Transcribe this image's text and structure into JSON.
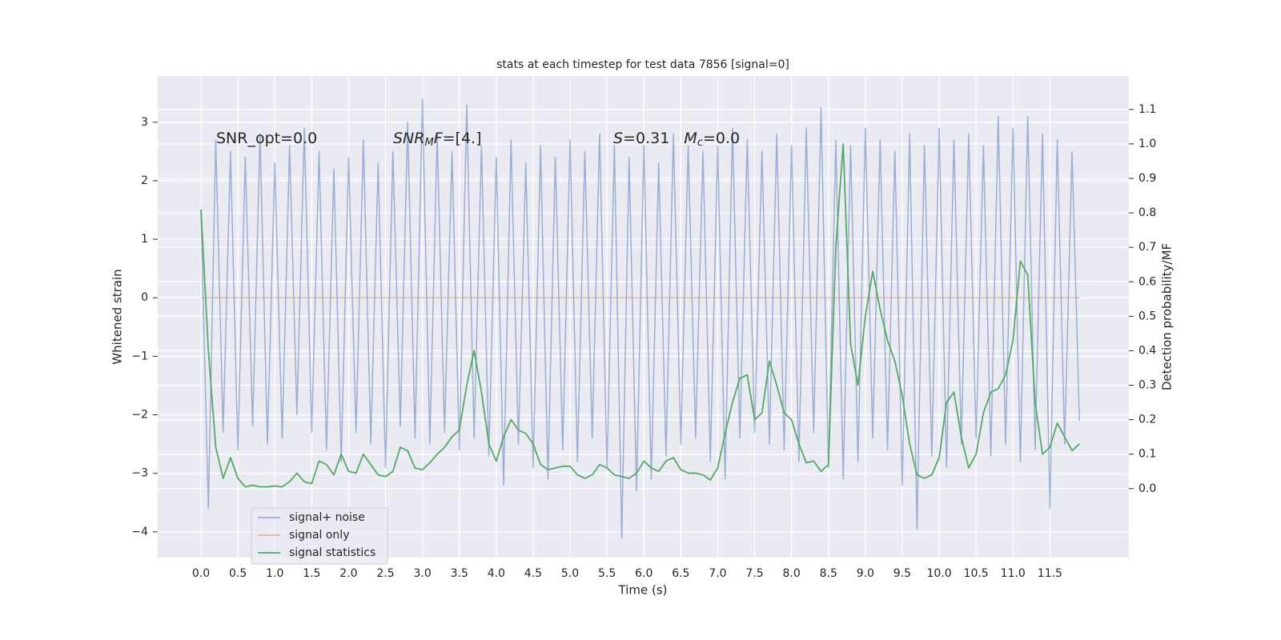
{
  "chart_data": {
    "type": "line",
    "title": "stats at each timestep for test data 7856 [signal=0]",
    "xlabel": "Time (s)",
    "ylabel": "Whitened strain",
    "y2label": "Detection probability/MF",
    "annotations": [
      [
        {
          "text": "SNR_opt=0.0"
        }
      ],
      [
        {
          "text": "SNR",
          "style": "italic"
        },
        {
          "text": "M",
          "style": "sub"
        },
        {
          "text": "F",
          "style": "italic"
        },
        {
          "text": "=[4.]"
        }
      ],
      [
        {
          "text": "S",
          "style": "italic"
        },
        {
          "text": "=0.31   "
        },
        {
          "text": "M",
          "style": "italic"
        },
        {
          "text": "c",
          "style": "sub"
        },
        {
          "text": "=0.0"
        }
      ]
    ],
    "x": [
      0.0,
      0.1,
      0.2,
      0.3,
      0.4,
      0.5,
      0.6,
      0.7,
      0.8,
      0.9,
      1.0,
      1.1,
      1.2,
      1.3,
      1.4,
      1.5,
      1.6,
      1.7,
      1.8,
      1.9,
      2.0,
      2.1,
      2.2,
      2.3,
      2.4,
      2.5,
      2.6,
      2.7,
      2.8,
      2.9,
      3.0,
      3.1,
      3.2,
      3.3,
      3.4,
      3.5,
      3.6,
      3.7,
      3.8,
      3.9,
      4.0,
      4.1,
      4.2,
      4.3,
      4.4,
      4.5,
      4.6,
      4.7,
      4.8,
      4.9,
      5.0,
      5.1,
      5.2,
      5.3,
      5.4,
      5.5,
      5.6,
      5.7,
      5.8,
      5.9,
      6.0,
      6.1,
      6.2,
      6.3,
      6.4,
      6.5,
      6.6,
      6.7,
      6.8,
      6.9,
      7.0,
      7.1,
      7.2,
      7.3,
      7.4,
      7.5,
      7.6,
      7.7,
      7.8,
      7.9,
      8.0,
      8.1,
      8.2,
      8.3,
      8.4,
      8.5,
      8.6,
      8.7,
      8.8,
      8.9,
      9.0,
      9.1,
      9.2,
      9.3,
      9.4,
      9.5,
      9.6,
      9.7,
      9.8,
      9.9,
      10.0,
      10.1,
      10.2,
      10.3,
      10.4,
      10.5,
      10.6,
      10.7,
      10.8,
      10.9,
      11.0,
      11.1,
      11.2,
      11.3,
      11.4,
      11.5,
      11.6,
      11.7,
      11.8,
      11.9
    ],
    "series": [
      {
        "name": "signal+ noise",
        "color": "#4c72b0",
        "opacity": 0.5,
        "axis": "y",
        "values": [
          1.5,
          -3.6,
          2.7,
          -2.3,
          2.5,
          -2.6,
          2.4,
          -2.2,
          2.8,
          -2.5,
          2.3,
          -2.4,
          2.6,
          -2.0,
          2.9,
          -2.3,
          2.5,
          -2.6,
          2.2,
          -2.8,
          2.4,
          -2.3,
          2.7,
          -2.5,
          2.3,
          -2.9,
          2.5,
          -2.2,
          3.0,
          -2.4,
          3.4,
          -2.5,
          2.8,
          -2.3,
          2.5,
          -2.6,
          3.3,
          -2.4,
          2.6,
          -2.7,
          2.4,
          -3.2,
          2.7,
          -2.5,
          2.3,
          -2.9,
          2.6,
          -3.1,
          2.4,
          -2.6,
          2.7,
          -2.8,
          2.5,
          -2.4,
          2.8,
          -2.9,
          2.6,
          -4.1,
          2.4,
          -3.3,
          2.6,
          -3.1,
          2.3,
          -2.7,
          2.8,
          -2.5,
          2.6,
          -2.4,
          2.5,
          -2.8,
          2.6,
          -3.1,
          2.9,
          -2.4,
          2.7,
          -2.3,
          2.5,
          -2.5,
          2.8,
          -2.6,
          2.6,
          -2.8,
          2.9,
          -2.3,
          3.25,
          -2.9,
          2.7,
          -3.1,
          2.6,
          -2.8,
          2.9,
          -2.4,
          2.7,
          -2.6,
          2.5,
          -3.2,
          2.8,
          -3.95,
          2.6,
          -2.7,
          2.9,
          -2.9,
          2.7,
          -2.5,
          2.8,
          -2.4,
          2.6,
          -2.7,
          3.1,
          -2.5,
          2.9,
          -2.8,
          3.1,
          -2.6,
          2.8,
          -3.6,
          2.7,
          -2.5,
          2.5,
          -2.1
        ]
      },
      {
        "name": "signal only",
        "color": "#dd8452",
        "opacity": 0.5,
        "axis": "y",
        "values": [
          0,
          0,
          0,
          0,
          0,
          0,
          0,
          0,
          0,
          0,
          0,
          0,
          0,
          0,
          0,
          0,
          0,
          0,
          0,
          0,
          0,
          0,
          0,
          0,
          0,
          0,
          0,
          0,
          0,
          0,
          0,
          0,
          0,
          0,
          0,
          0,
          0,
          0,
          0,
          0,
          0,
          0,
          0,
          0,
          0,
          0,
          0,
          0,
          0,
          0,
          0,
          0,
          0,
          0,
          0,
          0,
          0,
          0,
          0,
          0,
          0,
          0,
          0,
          0,
          0,
          0,
          0,
          0,
          0,
          0,
          0,
          0,
          0,
          0,
          0,
          0,
          0,
          0,
          0,
          0,
          0,
          0,
          0,
          0,
          0,
          0,
          0,
          0,
          0,
          0,
          0,
          0,
          0,
          0,
          0,
          0,
          0,
          0,
          0,
          0,
          0,
          0,
          0,
          0,
          0,
          0,
          0,
          0,
          0,
          0,
          0,
          0,
          0,
          0,
          0,
          0,
          0,
          0,
          0,
          0
        ]
      },
      {
        "name": "signal statistics",
        "color": "#55a868",
        "opacity": 1,
        "axis": "y2",
        "values": [
          0.81,
          0.4,
          0.12,
          0.03,
          0.09,
          0.03,
          0.005,
          0.01,
          0.005,
          0.005,
          0.008,
          0.005,
          0.02,
          0.045,
          0.02,
          0.015,
          0.08,
          0.07,
          0.04,
          0.1,
          0.05,
          0.045,
          0.1,
          0.07,
          0.04,
          0.035,
          0.05,
          0.12,
          0.11,
          0.06,
          0.055,
          0.075,
          0.1,
          0.12,
          0.15,
          0.17,
          0.3,
          0.4,
          0.28,
          0.13,
          0.08,
          0.15,
          0.2,
          0.17,
          0.16,
          0.13,
          0.07,
          0.055,
          0.06,
          0.065,
          0.065,
          0.04,
          0.03,
          0.04,
          0.07,
          0.06,
          0.04,
          0.035,
          0.03,
          0.045,
          0.08,
          0.06,
          0.05,
          0.08,
          0.09,
          0.055,
          0.045,
          0.045,
          0.04,
          0.025,
          0.06,
          0.16,
          0.25,
          0.32,
          0.33,
          0.2,
          0.22,
          0.37,
          0.3,
          0.22,
          0.2,
          0.13,
          0.075,
          0.08,
          0.05,
          0.07,
          0.7,
          1.0,
          0.42,
          0.3,
          0.5,
          0.63,
          0.52,
          0.43,
          0.37,
          0.27,
          0.13,
          0.04,
          0.03,
          0.04,
          0.09,
          0.25,
          0.28,
          0.15,
          0.06,
          0.1,
          0.22,
          0.28,
          0.29,
          0.33,
          0.43,
          0.66,
          0.62,
          0.25,
          0.1,
          0.12,
          0.19,
          0.15,
          0.11,
          0.13
        ]
      }
    ],
    "xlim": [
      -0.586,
      12.57
    ],
    "xticks": [
      {
        "value": 0,
        "label": "0.0"
      },
      0.5,
      {
        "value": 1,
        "label": "1.0"
      },
      1.5,
      {
        "value": 2,
        "label": "2.0"
      },
      2.5,
      {
        "value": 3,
        "label": "3.0"
      },
      3.5,
      {
        "value": 4,
        "label": "4.0"
      },
      4.5,
      {
        "value": 5,
        "label": "5.0"
      },
      5.5,
      {
        "value": 6,
        "label": "6.0"
      },
      6.5,
      {
        "value": 7,
        "label": "7.0"
      },
      7.5,
      {
        "value": 8,
        "label": "8.0"
      },
      8.5,
      {
        "value": 9,
        "label": "9.0"
      },
      9.5,
      {
        "value": 10,
        "label": "10.0"
      },
      10.5,
      {
        "value": 11,
        "label": "11.0"
      },
      11.5
    ],
    "ylim": [
      -4.44,
      3.79
    ],
    "yticks": [
      {
        "value": -4,
        "label": "−4"
      },
      {
        "value": -3,
        "label": "−3"
      },
      {
        "value": -2,
        "label": "−2"
      },
      {
        "value": -1,
        "label": "−1"
      },
      0,
      1,
      2,
      3
    ],
    "y2lim": [
      -0.2,
      1.197
    ],
    "y2ticks": [
      {
        "value": 0,
        "label": "0.0"
      },
      0.1,
      0.2,
      0.3,
      0.4,
      0.5,
      0.6,
      0.7,
      0.8,
      0.9,
      {
        "value": 1,
        "label": "1.0"
      },
      1.1
    ],
    "grid": true,
    "legend": "lower left"
  }
}
